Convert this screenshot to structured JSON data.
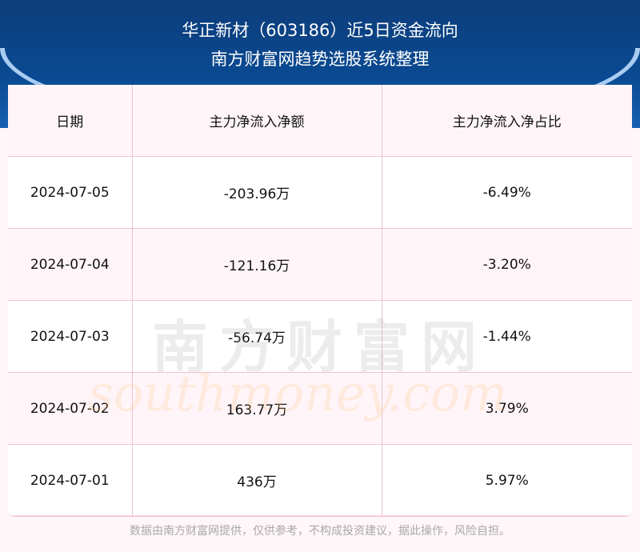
{
  "header": {
    "title": "华正新材（603186）近5日资金流向",
    "subtitle": "南方财富网趋势选股系统整理"
  },
  "chart_data": {
    "type": "table",
    "columns": [
      "日期",
      "主力净流入净额",
      "主力净流入净占比"
    ],
    "rows": [
      [
        "2024-07-05",
        "-203.96万",
        "-6.49%"
      ],
      [
        "2024-07-04",
        "-121.16万",
        "-3.20%"
      ],
      [
        "2024-07-03",
        "-56.74万",
        "-1.44%"
      ],
      [
        "2024-07-02",
        "163.77万",
        "3.79%"
      ],
      [
        "2024-07-01",
        "436万",
        "5.97%"
      ]
    ]
  },
  "watermark": {
    "cn": "南方财富网",
    "en": "southmoney.com"
  },
  "footer": "数据由南方财富网提供，仅供参考，不构成投资建议，据此操作，风险自担。",
  "colors": {
    "banner": "#0a4a92",
    "border": "#f0c3cc",
    "row_alt": "#fff5f9"
  }
}
